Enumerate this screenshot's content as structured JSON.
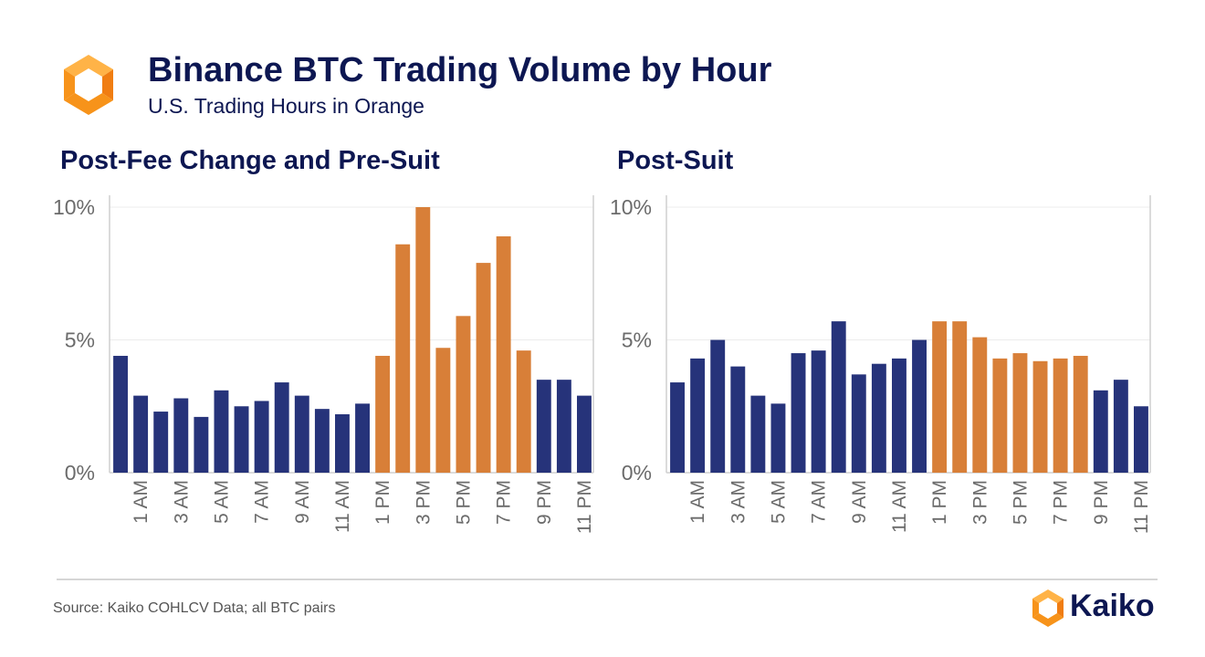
{
  "header": {
    "title": "Binance BTC Trading Volume by Hour",
    "subtitle": "U.S. Trading Hours in Orange"
  },
  "colors": {
    "non_us": "#26337a",
    "us": "#d87f38",
    "title": "#0d1752",
    "axis_text": "#6b6b6b",
    "logo_orange": "#f7931a",
    "logo_light": "#ffb347"
  },
  "icons": {
    "header_logo": "kaiko-logo-icon",
    "footer_logo": "kaiko-logo-icon"
  },
  "footer": {
    "source": "Source: Kaiko COHLCV Data; all BTC pairs",
    "brand": "Kaiko"
  },
  "chart_data": [
    {
      "type": "bar",
      "title": "Post-Fee Change and Pre-Suit",
      "categories": [
        "12 AM",
        "1 AM",
        "2 AM",
        "3 AM",
        "4 AM",
        "5 AM",
        "6 AM",
        "7 AM",
        "8 AM",
        "9 AM",
        "10 AM",
        "11 AM",
        "12 PM",
        "1 PM",
        "2 PM",
        "3 PM",
        "4 PM",
        "5 PM",
        "6 PM",
        "7 PM",
        "8 PM",
        "9 PM",
        "10 PM",
        "11 PM"
      ],
      "tick_labels": [
        "1 AM",
        "3 AM",
        "5 AM",
        "7 AM",
        "9 AM",
        "11 AM",
        "1 PM",
        "3 PM",
        "5 PM",
        "7 PM",
        "9 PM",
        "11 PM"
      ],
      "values": [
        4.4,
        2.9,
        2.3,
        2.8,
        2.1,
        3.1,
        2.5,
        2.7,
        3.4,
        2.9,
        2.4,
        2.2,
        2.6,
        4.4,
        8.6,
        10.0,
        4.7,
        5.9,
        7.9,
        8.9,
        4.6,
        3.5,
        3.5,
        2.9
      ],
      "us_hours": [
        false,
        false,
        false,
        false,
        false,
        false,
        false,
        false,
        false,
        false,
        false,
        false,
        false,
        true,
        true,
        true,
        true,
        true,
        true,
        true,
        true,
        false,
        false,
        false
      ],
      "ylim": [
        0,
        10
      ],
      "yticks": [
        0,
        5,
        10
      ],
      "ytick_labels": [
        "0%",
        "5%",
        "10%"
      ],
      "grid": true
    },
    {
      "type": "bar",
      "title": "Post-Suit",
      "categories": [
        "12 AM",
        "1 AM",
        "2 AM",
        "3 AM",
        "4 AM",
        "5 AM",
        "6 AM",
        "7 AM",
        "8 AM",
        "9 AM",
        "10 AM",
        "11 AM",
        "12 PM",
        "1 PM",
        "2 PM",
        "3 PM",
        "4 PM",
        "5 PM",
        "6 PM",
        "7 PM",
        "8 PM",
        "9 PM",
        "10 PM",
        "11 PM"
      ],
      "tick_labels": [
        "1 AM",
        "3 AM",
        "5 AM",
        "7 AM",
        "9 AM",
        "11 AM",
        "1 PM",
        "3 PM",
        "5 PM",
        "7 PM",
        "9 PM",
        "11 PM"
      ],
      "values": [
        3.4,
        4.3,
        5.0,
        4.0,
        2.9,
        2.6,
        4.5,
        4.6,
        5.7,
        3.7,
        4.1,
        4.3,
        5.0,
        5.7,
        5.7,
        5.1,
        4.3,
        4.5,
        4.2,
        4.3,
        4.4,
        3.1,
        3.5,
        2.5
      ],
      "us_hours": [
        false,
        false,
        false,
        false,
        false,
        false,
        false,
        false,
        false,
        false,
        false,
        false,
        false,
        true,
        true,
        true,
        true,
        true,
        true,
        true,
        true,
        false,
        false,
        false
      ],
      "ylim": [
        0,
        10
      ],
      "yticks": [
        0,
        5,
        10
      ],
      "ytick_labels": [
        "0%",
        "5%",
        "10%"
      ],
      "grid": true
    }
  ]
}
